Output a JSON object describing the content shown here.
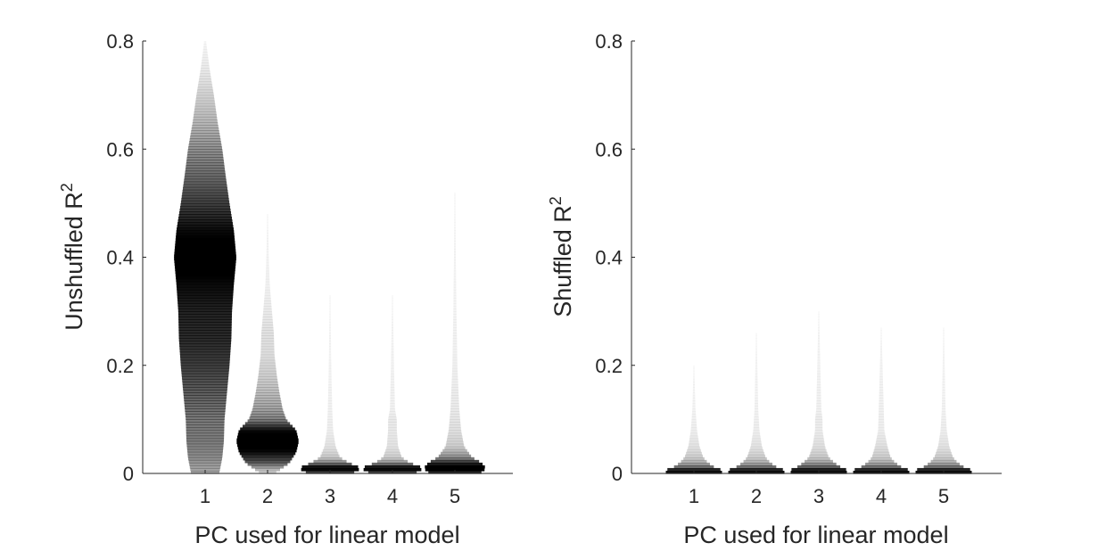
{
  "chart_data": [
    {
      "type": "violin",
      "xlabel": "PC used for linear model",
      "ylabel_main": "Unshuffled R",
      "ylabel_sup": "2",
      "categories": [
        "1",
        "2",
        "3",
        "4",
        "5"
      ],
      "ylim": [
        0,
        0.8
      ],
      "yticks": [
        "0",
        "0.2",
        "0.4",
        "0.6",
        "0.8"
      ],
      "fill_color": "#000000",
      "distributions": [
        {
          "category": "1",
          "max": 0.8,
          "profile": [
            [
              0.0,
              0.45
            ],
            [
              0.03,
              0.55
            ],
            [
              0.06,
              0.6
            ],
            [
              0.1,
              0.62
            ],
            [
              0.15,
              0.7
            ],
            [
              0.2,
              0.78
            ],
            [
              0.25,
              0.84
            ],
            [
              0.3,
              0.86
            ],
            [
              0.35,
              0.92
            ],
            [
              0.4,
              1.0
            ],
            [
              0.45,
              0.92
            ],
            [
              0.5,
              0.78
            ],
            [
              0.55,
              0.66
            ],
            [
              0.6,
              0.55
            ],
            [
              0.65,
              0.4
            ],
            [
              0.7,
              0.28
            ],
            [
              0.75,
              0.14
            ],
            [
              0.8,
              0.03
            ]
          ]
        },
        {
          "category": "2",
          "max": 0.48,
          "profile": [
            [
              0.0,
              0.22
            ],
            [
              0.02,
              0.7
            ],
            [
              0.04,
              0.92
            ],
            [
              0.06,
              1.0
            ],
            [
              0.08,
              0.92
            ],
            [
              0.1,
              0.6
            ],
            [
              0.12,
              0.48
            ],
            [
              0.15,
              0.38
            ],
            [
              0.18,
              0.3
            ],
            [
              0.22,
              0.22
            ],
            [
              0.26,
              0.2
            ],
            [
              0.3,
              0.14
            ],
            [
              0.35,
              0.07
            ],
            [
              0.4,
              0.04
            ],
            [
              0.48,
              0.01
            ]
          ]
        },
        {
          "category": "3",
          "max": 0.33,
          "profile": [
            [
              0.0,
              0.7
            ],
            [
              0.01,
              1.0
            ],
            [
              0.02,
              0.6
            ],
            [
              0.03,
              0.32
            ],
            [
              0.05,
              0.18
            ],
            [
              0.08,
              0.1
            ],
            [
              0.12,
              0.07
            ],
            [
              0.2,
              0.04
            ],
            [
              0.33,
              0.01
            ]
          ]
        },
        {
          "category": "4",
          "max": 0.33,
          "profile": [
            [
              0.0,
              0.7
            ],
            [
              0.01,
              1.0
            ],
            [
              0.02,
              0.55
            ],
            [
              0.03,
              0.3
            ],
            [
              0.05,
              0.18
            ],
            [
              0.08,
              0.14
            ],
            [
              0.1,
              0.14
            ],
            [
              0.12,
              0.08
            ],
            [
              0.2,
              0.05
            ],
            [
              0.33,
              0.01
            ]
          ]
        },
        {
          "category": "5",
          "max": 0.52,
          "profile": [
            [
              0.0,
              0.8
            ],
            [
              0.01,
              1.0
            ],
            [
              0.02,
              0.85
            ],
            [
              0.03,
              0.55
            ],
            [
              0.05,
              0.3
            ],
            [
              0.08,
              0.2
            ],
            [
              0.12,
              0.14
            ],
            [
              0.2,
              0.08
            ],
            [
              0.3,
              0.05
            ],
            [
              0.4,
              0.03
            ],
            [
              0.52,
              0.01
            ]
          ]
        }
      ]
    },
    {
      "type": "violin",
      "xlabel": "PC used for linear model",
      "ylabel_main": "Shuffled R",
      "ylabel_sup": "2",
      "categories": [
        "1",
        "2",
        "3",
        "4",
        "5"
      ],
      "ylim": [
        0,
        0.8
      ],
      "yticks": [
        "0",
        "0.2",
        "0.4",
        "0.6",
        "0.8"
      ],
      "fill_color": "#000000",
      "distributions": [
        {
          "category": "1",
          "max": 0.2,
          "profile": [
            [
              0.0,
              0.8
            ],
            [
              0.005,
              1.0
            ],
            [
              0.01,
              0.7
            ],
            [
              0.02,
              0.45
            ],
            [
              0.03,
              0.3
            ],
            [
              0.05,
              0.18
            ],
            [
              0.08,
              0.1
            ],
            [
              0.12,
              0.05
            ],
            [
              0.2,
              0.01
            ]
          ]
        },
        {
          "category": "2",
          "max": 0.26,
          "profile": [
            [
              0.0,
              0.8
            ],
            [
              0.005,
              1.0
            ],
            [
              0.01,
              0.7
            ],
            [
              0.02,
              0.45
            ],
            [
              0.03,
              0.3
            ],
            [
              0.05,
              0.18
            ],
            [
              0.08,
              0.1
            ],
            [
              0.12,
              0.06
            ],
            [
              0.26,
              0.01
            ]
          ]
        },
        {
          "category": "3",
          "max": 0.3,
          "profile": [
            [
              0.0,
              0.8
            ],
            [
              0.005,
              1.0
            ],
            [
              0.01,
              0.75
            ],
            [
              0.02,
              0.5
            ],
            [
              0.03,
              0.32
            ],
            [
              0.05,
              0.2
            ],
            [
              0.08,
              0.12
            ],
            [
              0.1,
              0.12
            ],
            [
              0.12,
              0.08
            ],
            [
              0.3,
              0.01
            ]
          ]
        },
        {
          "category": "4",
          "max": 0.27,
          "profile": [
            [
              0.0,
              0.8
            ],
            [
              0.005,
              1.0
            ],
            [
              0.01,
              0.7
            ],
            [
              0.02,
              0.45
            ],
            [
              0.03,
              0.3
            ],
            [
              0.05,
              0.2
            ],
            [
              0.08,
              0.1
            ],
            [
              0.12,
              0.08
            ],
            [
              0.27,
              0.01
            ]
          ]
        },
        {
          "category": "5",
          "max": 0.27,
          "profile": [
            [
              0.0,
              0.8
            ],
            [
              0.005,
              1.0
            ],
            [
              0.01,
              0.7
            ],
            [
              0.02,
              0.45
            ],
            [
              0.03,
              0.3
            ],
            [
              0.05,
              0.18
            ],
            [
              0.08,
              0.1
            ],
            [
              0.12,
              0.06
            ],
            [
              0.27,
              0.01
            ]
          ]
        }
      ]
    }
  ]
}
